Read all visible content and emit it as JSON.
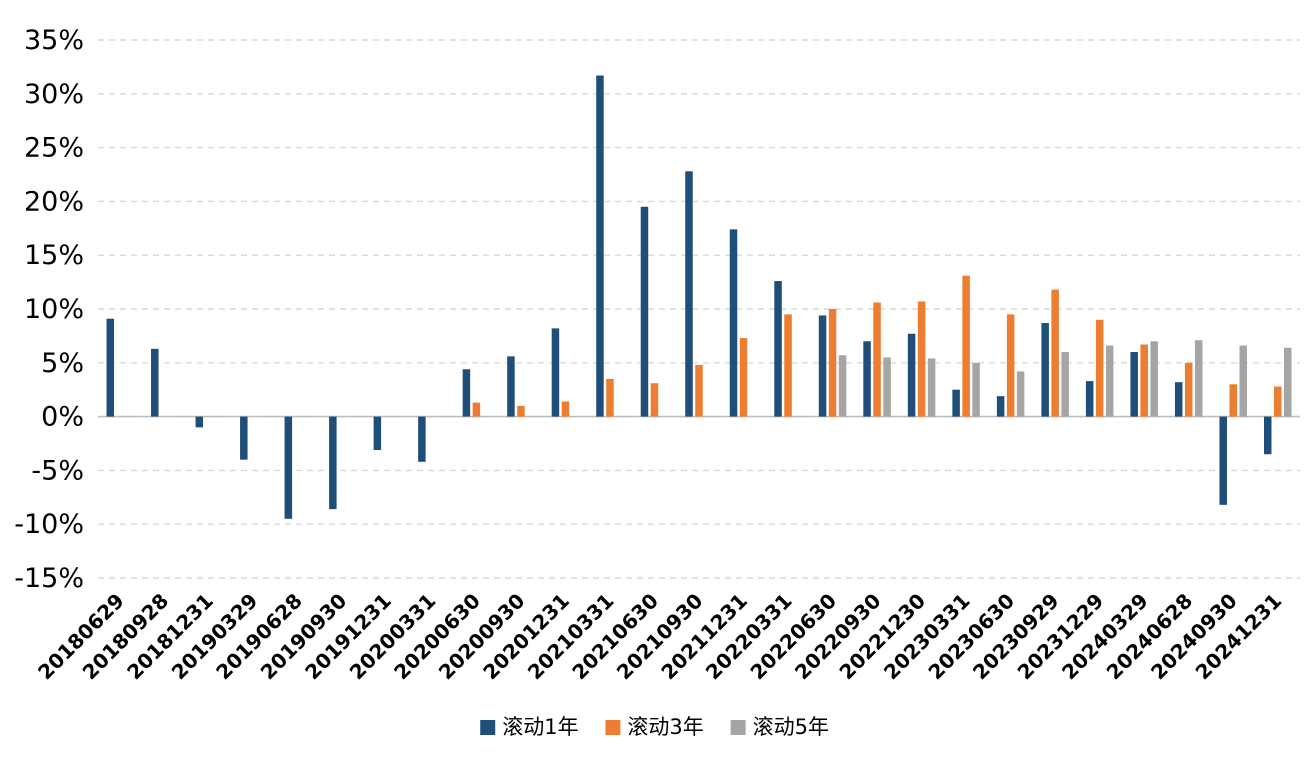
{
  "chart_data": {
    "type": "bar",
    "title": "",
    "xlabel": "",
    "ylabel": "",
    "categories": [
      "20180629",
      "20180928",
      "20181231",
      "20190329",
      "20190628",
      "20190930",
      "20191231",
      "20200331",
      "20200630",
      "20200930",
      "20201231",
      "20210331",
      "20210630",
      "20210930",
      "20211231",
      "20220331",
      "20220630",
      "20220930",
      "20221230",
      "20230331",
      "20230630",
      "20230929",
      "20231229",
      "20240329",
      "20240628",
      "20240930",
      "20241231"
    ],
    "series": [
      {
        "name": "滚动1年",
        "color": "#1f4e79",
        "values": [
          9.1,
          6.3,
          -1.0,
          -4.0,
          -9.5,
          -8.6,
          -3.1,
          -4.2,
          4.4,
          5.6,
          8.2,
          31.7,
          19.5,
          22.8,
          17.4,
          12.6,
          9.4,
          7.0,
          7.7,
          2.5,
          1.9,
          8.7,
          3.3,
          6.0,
          3.2,
          -8.2,
          -3.5
        ]
      },
      {
        "name": "滚动3年",
        "color": "#ed7d31",
        "values": [
          null,
          null,
          null,
          null,
          null,
          null,
          null,
          null,
          1.3,
          1.0,
          1.4,
          3.5,
          3.1,
          4.8,
          7.3,
          9.5,
          10.0,
          10.6,
          10.7,
          13.1,
          9.5,
          11.8,
          9.0,
          6.7,
          5.0,
          3.0,
          2.8
        ]
      },
      {
        "name": "滚动5年",
        "color": "#a5a5a5",
        "values": [
          null,
          null,
          null,
          null,
          null,
          null,
          null,
          null,
          null,
          null,
          null,
          null,
          null,
          null,
          null,
          null,
          5.7,
          5.5,
          5.4,
          5.0,
          4.2,
          6.0,
          6.6,
          7.0,
          7.1,
          6.6,
          6.4
        ]
      }
    ],
    "ylim": [
      -15,
      35
    ],
    "ytick_step": 5,
    "ytick_suffix": "%",
    "grid": true,
    "gridline_color": "#d9d9d9",
    "axis_line_color": "#bfbfbf",
    "text_color": "#000000",
    "legend_position": "bottom"
  }
}
